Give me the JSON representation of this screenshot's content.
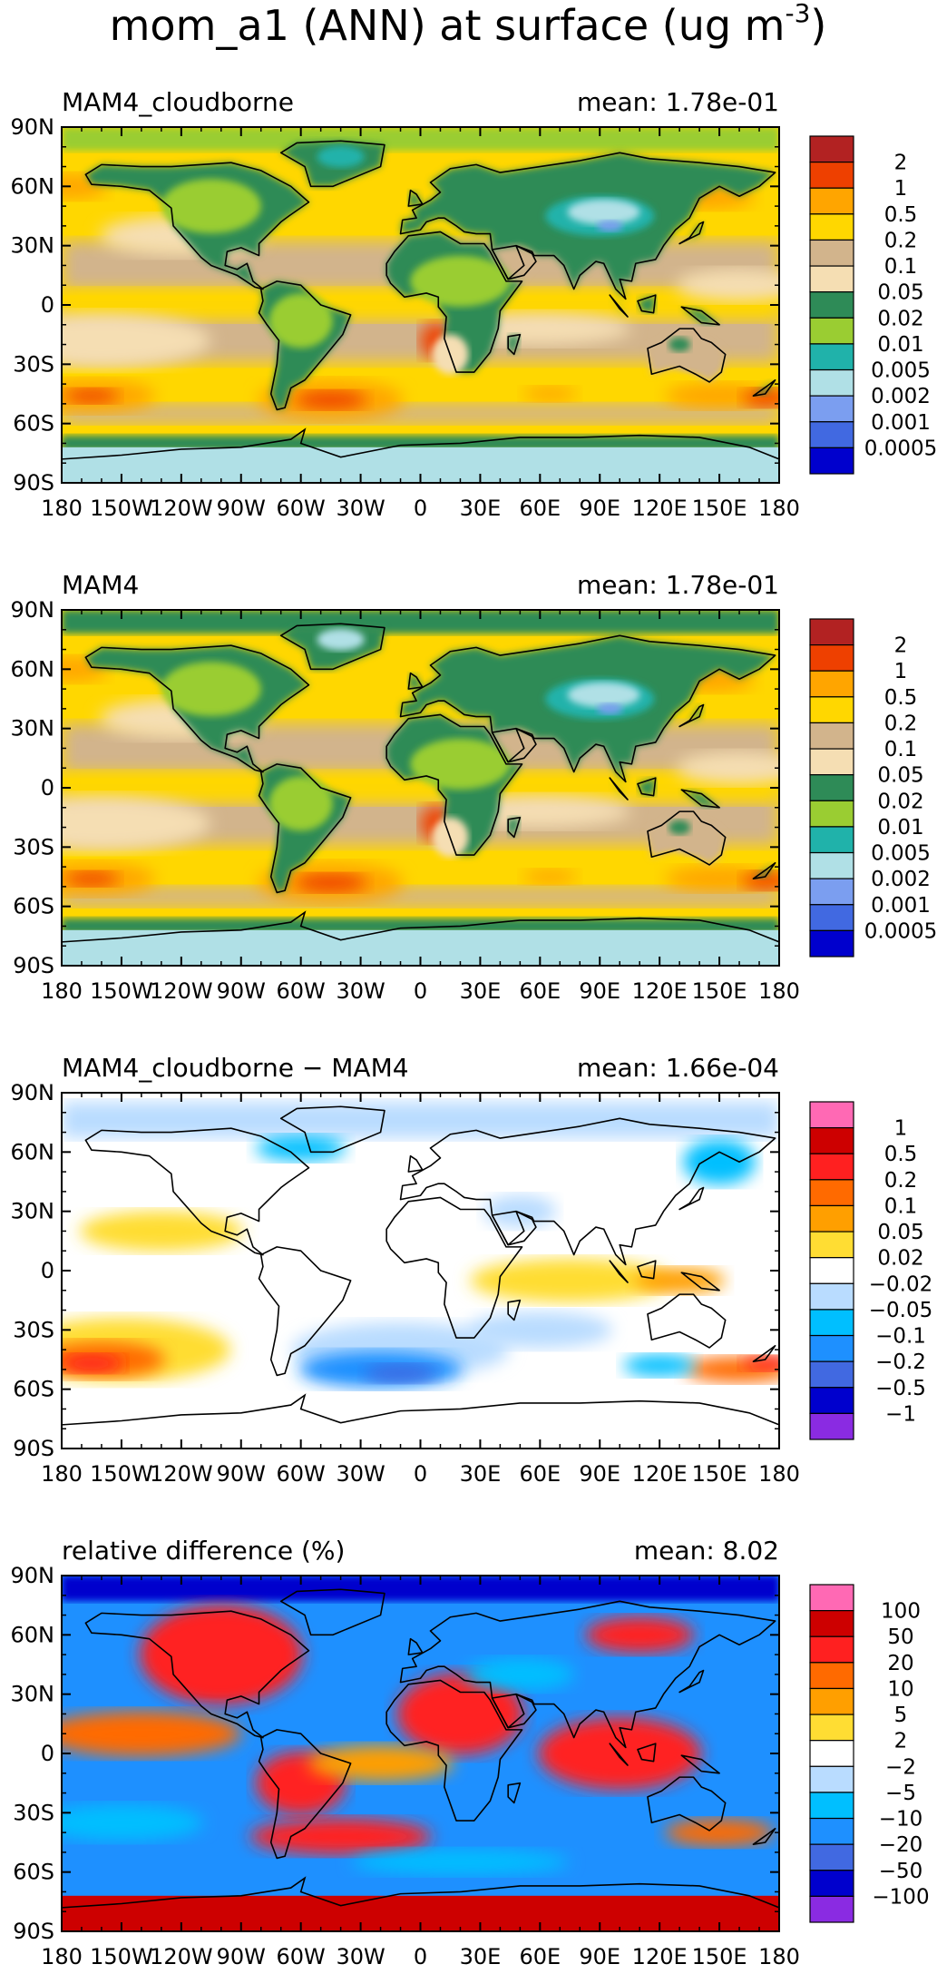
{
  "page_title": {
    "main": "mom_a1 (ANN) at surface (ug m",
    "superscript": "-3",
    "close": ")"
  },
  "chart_data": [
    {
      "type": "heatmap",
      "panel_label": "MAM4_cloudborne",
      "mean_label": "mean:",
      "mean_value": "1.78e-01",
      "xlabel": "",
      "ylabel": "",
      "xlim": [
        -180,
        180
      ],
      "ylim": [
        -90,
        90
      ],
      "x_ticks": [
        -180,
        -150,
        -120,
        -90,
        -60,
        -30,
        0,
        30,
        60,
        90,
        120,
        150,
        180
      ],
      "x_tick_labels": [
        "180",
        "150W",
        "120W",
        "90W",
        "60W",
        "30W",
        "0",
        "30E",
        "60E",
        "90E",
        "120E",
        "150E",
        "180"
      ],
      "y_ticks": [
        90,
        60,
        30,
        0,
        -30,
        -60,
        -90
      ],
      "y_tick_labels": [
        "90N",
        "60N",
        "30N",
        "0",
        "30S",
        "60S",
        "90S"
      ],
      "colorbar": {
        "labels": [
          "2",
          "1",
          "0.5",
          "0.2",
          "0.1",
          "0.05",
          "0.02",
          "0.01",
          "0.005",
          "0.002",
          "0.001",
          "0.0005"
        ],
        "colors": [
          "#b22222",
          "#ee4000",
          "#ffa500",
          "#ffd700",
          "#d2b48c",
          "#f5deb3",
          "#2e8b57",
          "#9acd32",
          "#20b2aa",
          "#b0e0e6",
          "#7b9ef0",
          "#4169e1",
          "#0000cd"
        ]
      }
    },
    {
      "type": "heatmap",
      "panel_label": "MAM4",
      "mean_label": "mean:",
      "mean_value": "1.78e-01",
      "xlabel": "",
      "ylabel": "",
      "xlim": [
        -180,
        180
      ],
      "ylim": [
        -90,
        90
      ],
      "x_ticks": [
        -180,
        -150,
        -120,
        -90,
        -60,
        -30,
        0,
        30,
        60,
        90,
        120,
        150,
        180
      ],
      "x_tick_labels": [
        "180",
        "150W",
        "120W",
        "90W",
        "60W",
        "30W",
        "0",
        "30E",
        "60E",
        "90E",
        "120E",
        "150E",
        "180"
      ],
      "y_ticks": [
        90,
        60,
        30,
        0,
        -30,
        -60,
        -90
      ],
      "y_tick_labels": [
        "90N",
        "60N",
        "30N",
        "0",
        "30S",
        "60S",
        "90S"
      ],
      "colorbar": {
        "labels": [
          "2",
          "1",
          "0.5",
          "0.2",
          "0.1",
          "0.05",
          "0.02",
          "0.01",
          "0.005",
          "0.002",
          "0.001",
          "0.0005"
        ],
        "colors": [
          "#b22222",
          "#ee4000",
          "#ffa500",
          "#ffd700",
          "#d2b48c",
          "#f5deb3",
          "#2e8b57",
          "#9acd32",
          "#20b2aa",
          "#b0e0e6",
          "#7b9ef0",
          "#4169e1",
          "#0000cd"
        ]
      }
    },
    {
      "type": "heatmap",
      "panel_label": "MAM4_cloudborne − MAM4",
      "mean_label": "mean:",
      "mean_value": "1.66e-04",
      "xlabel": "",
      "ylabel": "",
      "xlim": [
        -180,
        180
      ],
      "ylim": [
        -90,
        90
      ],
      "x_ticks": [
        -180,
        -150,
        -120,
        -90,
        -60,
        -30,
        0,
        30,
        60,
        90,
        120,
        150,
        180
      ],
      "x_tick_labels": [
        "180",
        "150W",
        "120W",
        "90W",
        "60W",
        "30W",
        "0",
        "30E",
        "60E",
        "90E",
        "120E",
        "150E",
        "180"
      ],
      "y_ticks": [
        90,
        60,
        30,
        0,
        -30,
        -60,
        -90
      ],
      "y_tick_labels": [
        "90N",
        "60N",
        "30N",
        "0",
        "30S",
        "60S",
        "90S"
      ],
      "colorbar": {
        "labels": [
          "1",
          "0.5",
          "0.2",
          "0.1",
          "0.05",
          "0.02",
          "−0.02",
          "−0.05",
          "−0.1",
          "−0.2",
          "−0.5",
          "−1"
        ],
        "colors": [
          "#ff69b4",
          "#cd0000",
          "#ff2020",
          "#ff6a00",
          "#ff9f00",
          "#ffdd33",
          "#ffffff",
          "#b9dcff",
          "#00bfff",
          "#1e90ff",
          "#4169e1",
          "#0000cd",
          "#8a2be2"
        ]
      }
    },
    {
      "type": "heatmap",
      "panel_label": "relative difference (%)",
      "mean_label": "mean:",
      "mean_value": "8.02",
      "xlabel": "",
      "ylabel": "",
      "xlim": [
        -180,
        180
      ],
      "ylim": [
        -90,
        90
      ],
      "x_ticks": [
        -180,
        -150,
        -120,
        -90,
        -60,
        -30,
        0,
        30,
        60,
        90,
        120,
        150,
        180
      ],
      "x_tick_labels": [
        "180",
        "150W",
        "120W",
        "90W",
        "60W",
        "30W",
        "0",
        "30E",
        "60E",
        "90E",
        "120E",
        "150E",
        "180"
      ],
      "y_ticks": [
        90,
        60,
        30,
        0,
        -30,
        -60,
        -90
      ],
      "y_tick_labels": [
        "90N",
        "60N",
        "30N",
        "0",
        "30S",
        "60S",
        "90S"
      ],
      "colorbar": {
        "labels": [
          "100",
          "50",
          "20",
          "10",
          "5",
          "2",
          "−2",
          "−5",
          "−10",
          "−20",
          "−50",
          "−100"
        ],
        "colors": [
          "#ff69b4",
          "#cd0000",
          "#ff2020",
          "#ff6a00",
          "#ff9f00",
          "#ffdd33",
          "#ffffff",
          "#b9dcff",
          "#00bfff",
          "#1e90ff",
          "#4169e1",
          "#0000cd",
          "#8a2be2"
        ]
      }
    }
  ]
}
